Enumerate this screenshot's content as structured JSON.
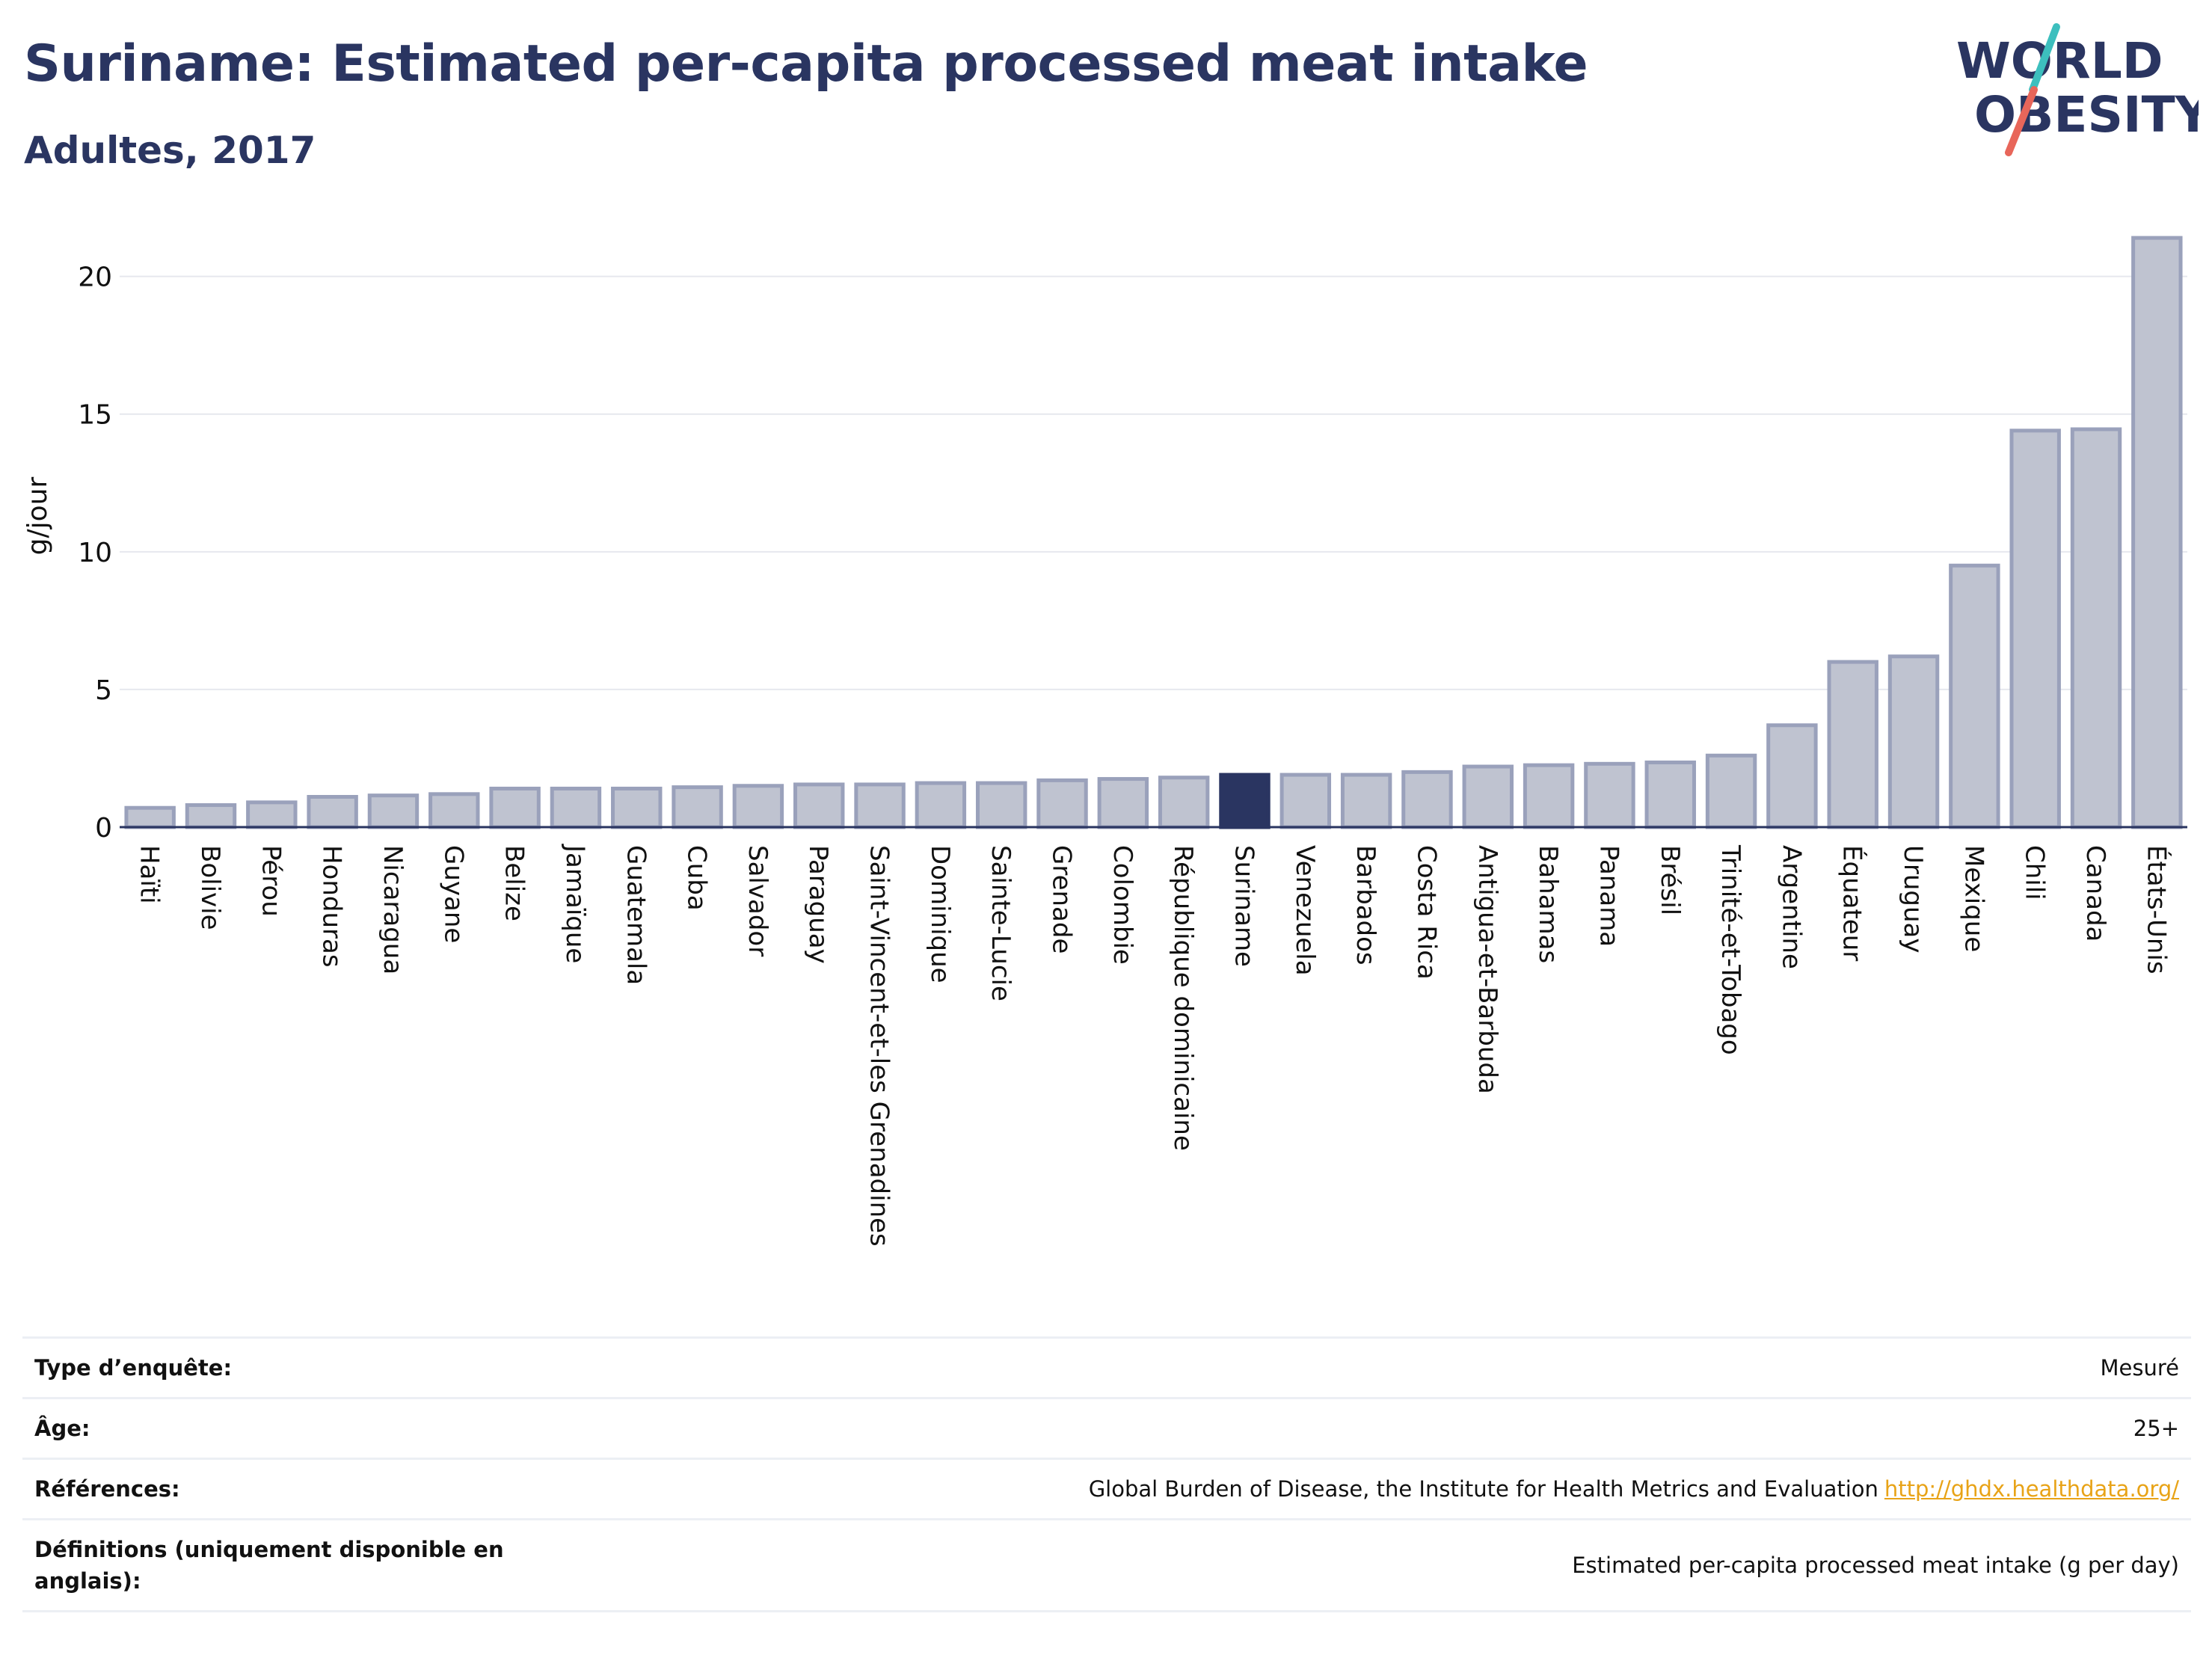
{
  "header": {
    "title": "Suriname: Estimated per-capita processed meat intake",
    "subtitle": "Adultes, 2017"
  },
  "logo": {
    "line1": "WORLD",
    "line2": "OBESITY",
    "colors": {
      "navy": "#2a3561",
      "teal": "#3dbfbe",
      "coral": "#e8665a"
    }
  },
  "chart_data": {
    "type": "bar",
    "ylabel": "g/jour",
    "ylim": [
      0,
      22
    ],
    "yticks": [
      0,
      5,
      10,
      15,
      20
    ],
    "grid": true,
    "highlight": "Suriname",
    "colors": {
      "bar": "#bfc3d0",
      "bar_border": "#9aa1bb",
      "highlight": "#2a3561",
      "grid": "#e6e8ee"
    },
    "categories": [
      "Haïti",
      "Bolivie",
      "Pérou",
      "Honduras",
      "Nicaragua",
      "Guyane",
      "Belize",
      "Jamaïque",
      "Guatemala",
      "Cuba",
      "Salvador",
      "Paraguay",
      "Saint-Vincent-et-les Grenadines",
      "Dominique",
      "Sainte-Lucie",
      "Grenade",
      "Colombie",
      "République dominicaine",
      "Suriname",
      "Venezuela",
      "Barbados",
      "Costa Rica",
      "Antigua-et-Barbuda",
      "Bahamas",
      "Panama",
      "Brésil",
      "Trinité-et-Tobago",
      "Argentine",
      "Équateur",
      "Uruguay",
      "Mexique",
      "Chili",
      "Canada",
      "États-Unis"
    ],
    "values": [
      0.7,
      0.8,
      0.9,
      1.1,
      1.15,
      1.2,
      1.4,
      1.4,
      1.4,
      1.45,
      1.5,
      1.55,
      1.55,
      1.6,
      1.6,
      1.7,
      1.75,
      1.8,
      1.9,
      1.9,
      1.9,
      2.0,
      2.2,
      2.25,
      2.3,
      2.35,
      2.6,
      3.7,
      6.0,
      6.2,
      9.5,
      14.4,
      14.45,
      21.4
    ]
  },
  "info": {
    "survey_label": "Type d’enquête:",
    "survey_value": "Mesuré",
    "age_label": "Âge:",
    "age_value": "25+",
    "refs_label": "Références:",
    "refs_value": "Global Burden of Disease, the Institute for Health Metrics and Evaluation",
    "refs_link": "http://ghdx.healthdata.org/",
    "defs_label": "Définitions (uniquement disponible en anglais):",
    "defs_value": "Estimated per-capita processed meat intake (g per day)"
  }
}
